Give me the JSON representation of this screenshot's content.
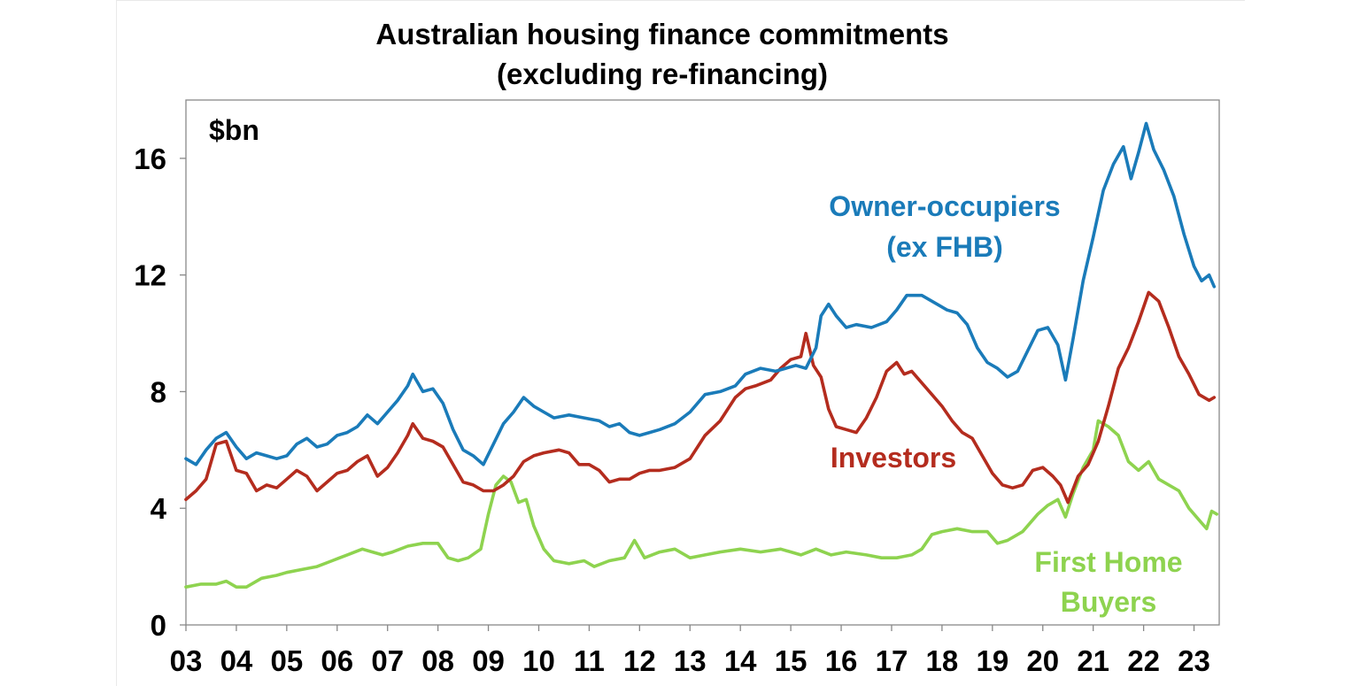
{
  "chart_data": {
    "type": "line",
    "title_line1": "Australian housing finance commitments",
    "title_line2": "(excluding re-financing)",
    "unit_label": "$bn",
    "ylim": [
      0,
      18
    ],
    "yticks": [
      0,
      4,
      8,
      12,
      16
    ],
    "xlim": [
      2003.0,
      2023.5
    ],
    "xtick_labels": [
      "03",
      "04",
      "05",
      "06",
      "07",
      "08",
      "09",
      "10",
      "11",
      "12",
      "13",
      "14",
      "15",
      "16",
      "17",
      "18",
      "19",
      "20",
      "21",
      "22",
      "23"
    ],
    "grid": false,
    "series": [
      {
        "name": "Owner-occupiers (ex FHB)",
        "label_line1": "Owner-occupiers",
        "label_line2": "(ex FHB)",
        "color": "#1A7BB9",
        "points": [
          [
            2003.0,
            5.7
          ],
          [
            2003.2,
            5.5
          ],
          [
            2003.4,
            6.0
          ],
          [
            2003.6,
            6.4
          ],
          [
            2003.8,
            6.6
          ],
          [
            2004.0,
            6.1
          ],
          [
            2004.2,
            5.7
          ],
          [
            2004.4,
            5.9
          ],
          [
            2004.6,
            5.8
          ],
          [
            2004.8,
            5.7
          ],
          [
            2005.0,
            5.8
          ],
          [
            2005.2,
            6.2
          ],
          [
            2005.4,
            6.4
          ],
          [
            2005.6,
            6.1
          ],
          [
            2005.8,
            6.2
          ],
          [
            2006.0,
            6.5
          ],
          [
            2006.2,
            6.6
          ],
          [
            2006.4,
            6.8
          ],
          [
            2006.6,
            7.2
          ],
          [
            2006.8,
            6.9
          ],
          [
            2007.0,
            7.3
          ],
          [
            2007.2,
            7.7
          ],
          [
            2007.4,
            8.2
          ],
          [
            2007.5,
            8.6
          ],
          [
            2007.7,
            8.0
          ],
          [
            2007.9,
            8.1
          ],
          [
            2008.1,
            7.6
          ],
          [
            2008.3,
            6.7
          ],
          [
            2008.5,
            6.0
          ],
          [
            2008.7,
            5.8
          ],
          [
            2008.9,
            5.5
          ],
          [
            2009.1,
            6.2
          ],
          [
            2009.3,
            6.9
          ],
          [
            2009.5,
            7.3
          ],
          [
            2009.7,
            7.8
          ],
          [
            2009.9,
            7.5
          ],
          [
            2010.1,
            7.3
          ],
          [
            2010.3,
            7.1
          ],
          [
            2010.6,
            7.2
          ],
          [
            2010.9,
            7.1
          ],
          [
            2011.2,
            7.0
          ],
          [
            2011.4,
            6.8
          ],
          [
            2011.6,
            6.9
          ],
          [
            2011.8,
            6.6
          ],
          [
            2012.0,
            6.5
          ],
          [
            2012.2,
            6.6
          ],
          [
            2012.4,
            6.7
          ],
          [
            2012.7,
            6.9
          ],
          [
            2013.0,
            7.3
          ],
          [
            2013.3,
            7.9
          ],
          [
            2013.6,
            8.0
          ],
          [
            2013.9,
            8.2
          ],
          [
            2014.1,
            8.6
          ],
          [
            2014.4,
            8.8
          ],
          [
            2014.7,
            8.7
          ],
          [
            2014.9,
            8.8
          ],
          [
            2015.1,
            8.9
          ],
          [
            2015.3,
            8.8
          ],
          [
            2015.5,
            9.5
          ],
          [
            2015.6,
            10.6
          ],
          [
            2015.75,
            11.0
          ],
          [
            2015.9,
            10.6
          ],
          [
            2016.1,
            10.2
          ],
          [
            2016.3,
            10.3
          ],
          [
            2016.6,
            10.2
          ],
          [
            2016.9,
            10.4
          ],
          [
            2017.1,
            10.8
          ],
          [
            2017.3,
            11.3
          ],
          [
            2017.6,
            11.3
          ],
          [
            2017.9,
            11.0
          ],
          [
            2018.1,
            10.8
          ],
          [
            2018.3,
            10.7
          ],
          [
            2018.5,
            10.3
          ],
          [
            2018.7,
            9.5
          ],
          [
            2018.9,
            9.0
          ],
          [
            2019.1,
            8.8
          ],
          [
            2019.3,
            8.5
          ],
          [
            2019.5,
            8.7
          ],
          [
            2019.7,
            9.4
          ],
          [
            2019.9,
            10.1
          ],
          [
            2020.1,
            10.2
          ],
          [
            2020.3,
            9.6
          ],
          [
            2020.45,
            8.4
          ],
          [
            2020.6,
            9.8
          ],
          [
            2020.8,
            11.8
          ],
          [
            2021.0,
            13.3
          ],
          [
            2021.2,
            14.9
          ],
          [
            2021.4,
            15.8
          ],
          [
            2021.6,
            16.4
          ],
          [
            2021.75,
            15.3
          ],
          [
            2021.9,
            16.2
          ],
          [
            2022.05,
            17.2
          ],
          [
            2022.2,
            16.3
          ],
          [
            2022.4,
            15.6
          ],
          [
            2022.6,
            14.7
          ],
          [
            2022.8,
            13.4
          ],
          [
            2023.0,
            12.3
          ],
          [
            2023.15,
            11.8
          ],
          [
            2023.3,
            12.0
          ],
          [
            2023.4,
            11.6
          ]
        ]
      },
      {
        "name": "Investors",
        "label_line1": "Investors",
        "color": "#B42C1E",
        "points": [
          [
            2003.0,
            4.3
          ],
          [
            2003.2,
            4.6
          ],
          [
            2003.4,
            5.0
          ],
          [
            2003.6,
            6.2
          ],
          [
            2003.8,
            6.3
          ],
          [
            2004.0,
            5.3
          ],
          [
            2004.2,
            5.2
          ],
          [
            2004.4,
            4.6
          ],
          [
            2004.6,
            4.8
          ],
          [
            2004.8,
            4.7
          ],
          [
            2005.0,
            5.0
          ],
          [
            2005.2,
            5.3
          ],
          [
            2005.4,
            5.1
          ],
          [
            2005.6,
            4.6
          ],
          [
            2005.8,
            4.9
          ],
          [
            2006.0,
            5.2
          ],
          [
            2006.2,
            5.3
          ],
          [
            2006.4,
            5.6
          ],
          [
            2006.6,
            5.8
          ],
          [
            2006.8,
            5.1
          ],
          [
            2007.0,
            5.4
          ],
          [
            2007.2,
            5.9
          ],
          [
            2007.4,
            6.5
          ],
          [
            2007.5,
            6.9
          ],
          [
            2007.7,
            6.4
          ],
          [
            2007.9,
            6.3
          ],
          [
            2008.1,
            6.1
          ],
          [
            2008.3,
            5.5
          ],
          [
            2008.5,
            4.9
          ],
          [
            2008.7,
            4.8
          ],
          [
            2008.9,
            4.6
          ],
          [
            2009.1,
            4.6
          ],
          [
            2009.3,
            4.8
          ],
          [
            2009.5,
            5.1
          ],
          [
            2009.7,
            5.6
          ],
          [
            2009.9,
            5.8
          ],
          [
            2010.1,
            5.9
          ],
          [
            2010.4,
            6.0
          ],
          [
            2010.6,
            5.9
          ],
          [
            2010.8,
            5.5
          ],
          [
            2011.0,
            5.5
          ],
          [
            2011.2,
            5.3
          ],
          [
            2011.4,
            4.9
          ],
          [
            2011.6,
            5.0
          ],
          [
            2011.8,
            5.0
          ],
          [
            2012.0,
            5.2
          ],
          [
            2012.2,
            5.3
          ],
          [
            2012.4,
            5.3
          ],
          [
            2012.7,
            5.4
          ],
          [
            2013.0,
            5.7
          ],
          [
            2013.3,
            6.5
          ],
          [
            2013.6,
            7.0
          ],
          [
            2013.9,
            7.8
          ],
          [
            2014.1,
            8.1
          ],
          [
            2014.3,
            8.2
          ],
          [
            2014.6,
            8.4
          ],
          [
            2014.8,
            8.8
          ],
          [
            2015.0,
            9.1
          ],
          [
            2015.2,
            9.2
          ],
          [
            2015.3,
            10.0
          ],
          [
            2015.45,
            8.9
          ],
          [
            2015.6,
            8.5
          ],
          [
            2015.75,
            7.4
          ],
          [
            2015.9,
            6.8
          ],
          [
            2016.1,
            6.7
          ],
          [
            2016.3,
            6.6
          ],
          [
            2016.5,
            7.1
          ],
          [
            2016.7,
            7.8
          ],
          [
            2016.9,
            8.7
          ],
          [
            2017.1,
            9.0
          ],
          [
            2017.25,
            8.6
          ],
          [
            2017.4,
            8.7
          ],
          [
            2017.6,
            8.3
          ],
          [
            2017.8,
            7.9
          ],
          [
            2018.0,
            7.5
          ],
          [
            2018.2,
            7.0
          ],
          [
            2018.4,
            6.6
          ],
          [
            2018.6,
            6.4
          ],
          [
            2018.8,
            5.8
          ],
          [
            2019.0,
            5.2
          ],
          [
            2019.2,
            4.8
          ],
          [
            2019.4,
            4.7
          ],
          [
            2019.6,
            4.8
          ],
          [
            2019.8,
            5.3
          ],
          [
            2020.0,
            5.4
          ],
          [
            2020.2,
            5.1
          ],
          [
            2020.35,
            4.8
          ],
          [
            2020.5,
            4.2
          ],
          [
            2020.7,
            5.1
          ],
          [
            2020.9,
            5.5
          ],
          [
            2021.1,
            6.3
          ],
          [
            2021.3,
            7.5
          ],
          [
            2021.5,
            8.8
          ],
          [
            2021.7,
            9.5
          ],
          [
            2021.9,
            10.4
          ],
          [
            2022.1,
            11.4
          ],
          [
            2022.3,
            11.1
          ],
          [
            2022.5,
            10.2
          ],
          [
            2022.7,
            9.2
          ],
          [
            2022.9,
            8.6
          ],
          [
            2023.1,
            7.9
          ],
          [
            2023.3,
            7.7
          ],
          [
            2023.4,
            7.8
          ]
        ]
      },
      {
        "name": "First Home Buyers",
        "label_line1": "First Home",
        "label_line2": "Buyers",
        "color": "#8ED34F",
        "points": [
          [
            2003.0,
            1.3
          ],
          [
            2003.3,
            1.4
          ],
          [
            2003.6,
            1.4
          ],
          [
            2003.8,
            1.5
          ],
          [
            2004.0,
            1.3
          ],
          [
            2004.2,
            1.3
          ],
          [
            2004.5,
            1.6
          ],
          [
            2004.8,
            1.7
          ],
          [
            2005.0,
            1.8
          ],
          [
            2005.3,
            1.9
          ],
          [
            2005.6,
            2.0
          ],
          [
            2005.9,
            2.2
          ],
          [
            2006.2,
            2.4
          ],
          [
            2006.5,
            2.6
          ],
          [
            2006.7,
            2.5
          ],
          [
            2006.9,
            2.4
          ],
          [
            2007.1,
            2.5
          ],
          [
            2007.4,
            2.7
          ],
          [
            2007.7,
            2.8
          ],
          [
            2008.0,
            2.8
          ],
          [
            2008.2,
            2.3
          ],
          [
            2008.4,
            2.2
          ],
          [
            2008.6,
            2.3
          ],
          [
            2008.85,
            2.6
          ],
          [
            2009.0,
            3.8
          ],
          [
            2009.15,
            4.8
          ],
          [
            2009.3,
            5.1
          ],
          [
            2009.45,
            4.9
          ],
          [
            2009.6,
            4.2
          ],
          [
            2009.75,
            4.3
          ],
          [
            2009.9,
            3.4
          ],
          [
            2010.1,
            2.6
          ],
          [
            2010.3,
            2.2
          ],
          [
            2010.6,
            2.1
          ],
          [
            2010.9,
            2.2
          ],
          [
            2011.1,
            2.0
          ],
          [
            2011.4,
            2.2
          ],
          [
            2011.7,
            2.3
          ],
          [
            2011.9,
            2.9
          ],
          [
            2012.1,
            2.3
          ],
          [
            2012.4,
            2.5
          ],
          [
            2012.7,
            2.6
          ],
          [
            2013.0,
            2.3
          ],
          [
            2013.3,
            2.4
          ],
          [
            2013.6,
            2.5
          ],
          [
            2014.0,
            2.6
          ],
          [
            2014.4,
            2.5
          ],
          [
            2014.8,
            2.6
          ],
          [
            2015.2,
            2.4
          ],
          [
            2015.5,
            2.6
          ],
          [
            2015.8,
            2.4
          ],
          [
            2016.1,
            2.5
          ],
          [
            2016.5,
            2.4
          ],
          [
            2016.8,
            2.3
          ],
          [
            2017.1,
            2.3
          ],
          [
            2017.4,
            2.4
          ],
          [
            2017.6,
            2.6
          ],
          [
            2017.8,
            3.1
          ],
          [
            2018.0,
            3.2
          ],
          [
            2018.3,
            3.3
          ],
          [
            2018.6,
            3.2
          ],
          [
            2018.9,
            3.2
          ],
          [
            2019.1,
            2.8
          ],
          [
            2019.3,
            2.9
          ],
          [
            2019.6,
            3.2
          ],
          [
            2019.9,
            3.8
          ],
          [
            2020.1,
            4.1
          ],
          [
            2020.3,
            4.3
          ],
          [
            2020.45,
            3.7
          ],
          [
            2020.6,
            4.5
          ],
          [
            2020.8,
            5.4
          ],
          [
            2021.0,
            6.0
          ],
          [
            2021.1,
            7.0
          ],
          [
            2021.3,
            6.8
          ],
          [
            2021.5,
            6.5
          ],
          [
            2021.7,
            5.6
          ],
          [
            2021.9,
            5.3
          ],
          [
            2022.1,
            5.6
          ],
          [
            2022.3,
            5.0
          ],
          [
            2022.5,
            4.8
          ],
          [
            2022.7,
            4.6
          ],
          [
            2022.9,
            4.0
          ],
          [
            2023.1,
            3.6
          ],
          [
            2023.25,
            3.3
          ],
          [
            2023.35,
            3.9
          ],
          [
            2023.45,
            3.8
          ]
        ]
      }
    ]
  }
}
